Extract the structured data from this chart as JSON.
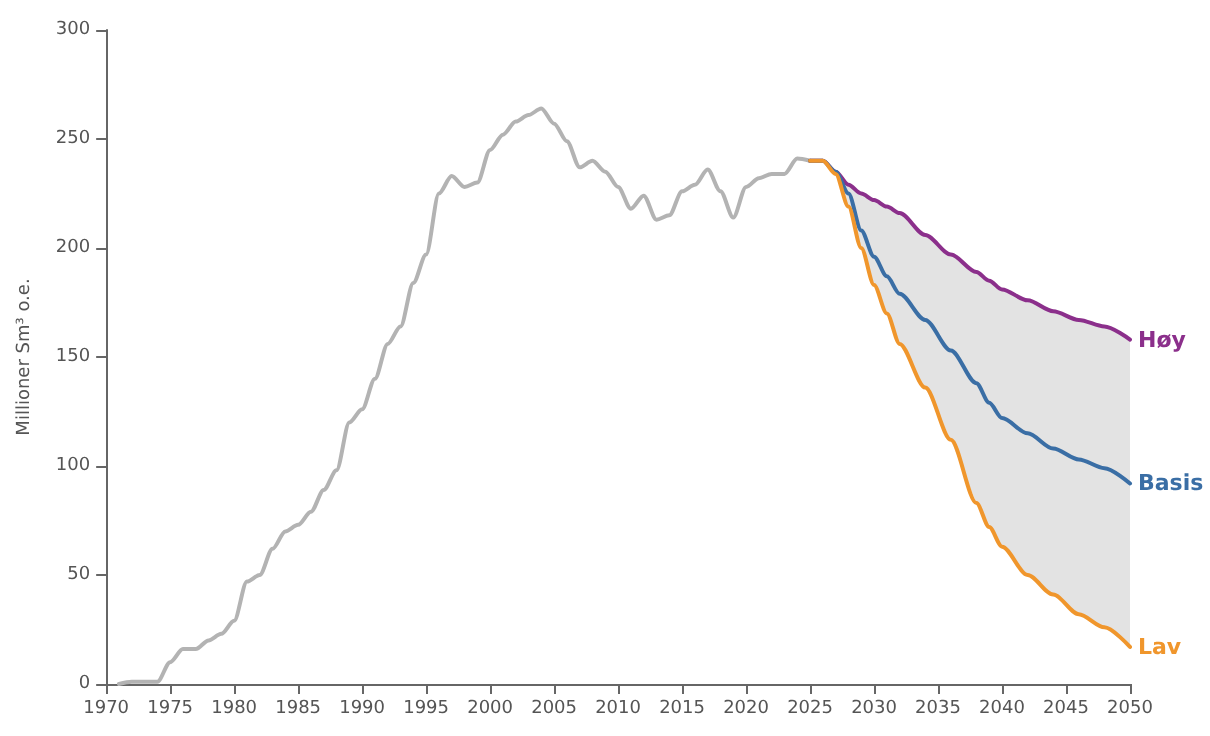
{
  "chart_data": {
    "type": "line",
    "ylabel": "Millioner Sm³ o.e.",
    "xlim": [
      1970,
      2050
    ],
    "xticks": [
      1970,
      1975,
      1980,
      1985,
      1990,
      1995,
      2000,
      2005,
      2010,
      2015,
      2020,
      2025,
      2030,
      2035,
      2040,
      2045,
      2050
    ],
    "ylim": [
      0,
      300
    ],
    "yticks": [
      0,
      50,
      100,
      150,
      200,
      250,
      300
    ],
    "grid": false,
    "legend": false,
    "marker": "none",
    "line_style": "solid",
    "series": [
      {
        "color": "#b3b3b3",
        "x": [
          1971,
          1972,
          1973,
          1974,
          1975,
          1976,
          1977,
          1978,
          1979,
          1980,
          1981,
          1982,
          1983,
          1984,
          1985,
          1986,
          1987,
          1988,
          1989,
          1990,
          1991,
          1992,
          1993,
          1994,
          1995,
          1996,
          1997,
          1998,
          1999,
          2000,
          2001,
          2002,
          2003,
          2004,
          2005,
          2006,
          2007,
          2008,
          2009,
          2010,
          2011,
          2012,
          2013,
          2014,
          2015,
          2016,
          2017,
          2018,
          2019,
          2020,
          2021,
          2022,
          2023,
          2024,
          2025
        ],
        "values": [
          0,
          1,
          1,
          1,
          10,
          16,
          16,
          20,
          23,
          29,
          47,
          50,
          62,
          70,
          73,
          79,
          89,
          98,
          120,
          126,
          140,
          156,
          164,
          184,
          197,
          225,
          233,
          228,
          230,
          245,
          252,
          258,
          261,
          264,
          257,
          249,
          237,
          240,
          235,
          228,
          218,
          224,
          213,
          215,
          226,
          229,
          236,
          226,
          214,
          228,
          232,
          234,
          234,
          241,
          240
        ]
      },
      {
        "name": "Høy",
        "color": "#8b2f8b",
        "x": [
          2025,
          2026,
          2027,
          2028,
          2029,
          2030,
          2031,
          2032,
          2034,
          2036,
          2038,
          2039,
          2040,
          2042,
          2044,
          2046,
          2048,
          2050
        ],
        "values": [
          240,
          240,
          235,
          229,
          225,
          222,
          219,
          216,
          206,
          197,
          189,
          185,
          181,
          176,
          171,
          167,
          164,
          158
        ]
      },
      {
        "name": "Basis",
        "color": "#3a6ea5",
        "x": [
          2025,
          2026,
          2027,
          2028,
          2029,
          2030,
          2031,
          2032,
          2034,
          2036,
          2038,
          2039,
          2040,
          2042,
          2044,
          2046,
          2048,
          2050
        ],
        "values": [
          240,
          240,
          235,
          225,
          208,
          196,
          187,
          179,
          167,
          153,
          138,
          129,
          122,
          115,
          108,
          103,
          99,
          92
        ],
        "lower": [
          240,
          240,
          234,
          219,
          200,
          183,
          170,
          156,
          136,
          112,
          83,
          72,
          63,
          50,
          41,
          32,
          26,
          17
        ],
        "upper": [
          240,
          240,
          235,
          229,
          225,
          222,
          219,
          216,
          206,
          197,
          189,
          185,
          181,
          176,
          171,
          167,
          164,
          158
        ]
      },
      {
        "name": "Lav",
        "color": "#f0962c",
        "x": [
          2025,
          2026,
          2027,
          2028,
          2029,
          2030,
          2031,
          2032,
          2034,
          2036,
          2038,
          2039,
          2040,
          2042,
          2044,
          2046,
          2048,
          2050
        ],
        "values": [
          240,
          240,
          234,
          219,
          200,
          183,
          170,
          156,
          136,
          112,
          83,
          72,
          63,
          50,
          41,
          32,
          26,
          17
        ]
      }
    ]
  }
}
